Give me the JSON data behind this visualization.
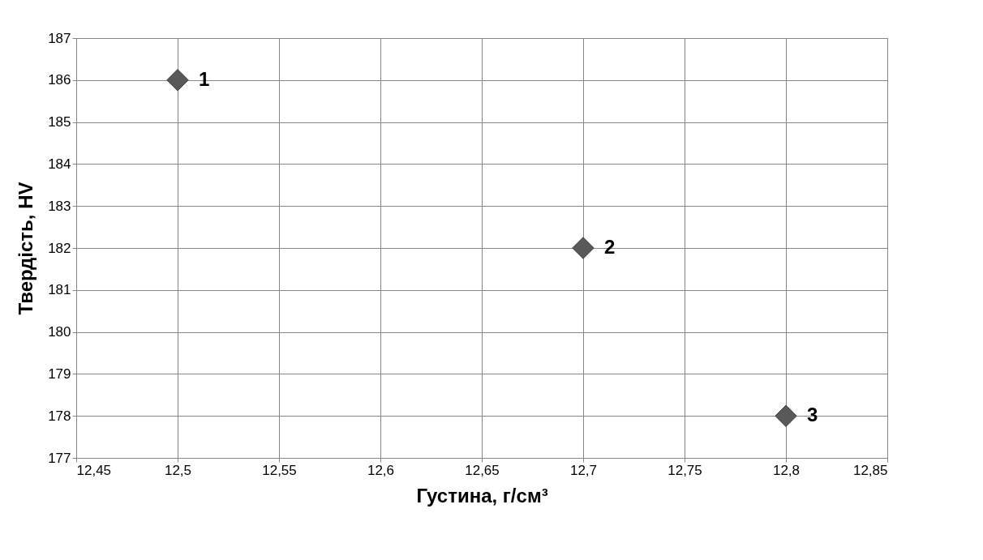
{
  "chart_data": {
    "type": "scatter",
    "xlabel": "Густина, г/см³",
    "ylabel": "Твердість, HV",
    "x": [
      12.5,
      12.7,
      12.8
    ],
    "series": [
      {
        "color": "#595959",
        "values": [
          186,
          182,
          178
        ]
      }
    ],
    "xlim": [
      12.45,
      12.85
    ],
    "xticks": [
      {
        "value": 12.45,
        "label": "12,45"
      },
      {
        "value": 12.5,
        "label": "12,5"
      },
      {
        "value": 12.55,
        "label": "12,55"
      },
      {
        "value": 12.6,
        "label": "12,6"
      },
      {
        "value": 12.65,
        "label": "12,65"
      },
      {
        "value": 12.7,
        "label": "12,7"
      },
      {
        "value": 12.75,
        "label": "12,75"
      },
      {
        "value": 12.8,
        "label": "12,8"
      },
      {
        "value": 12.85,
        "label": "12,85"
      }
    ],
    "ylim": [
      177,
      187
    ],
    "yticks": [
      177,
      178,
      179,
      180,
      181,
      182,
      183,
      184,
      185,
      186,
      187
    ],
    "grid": true,
    "marker": "diamond",
    "annotations": [
      {
        "text": "1",
        "x": 12.5,
        "y": 186
      },
      {
        "text": "2",
        "x": 12.7,
        "y": 182
      },
      {
        "text": "3",
        "x": 12.8,
        "y": 178
      }
    ]
  }
}
